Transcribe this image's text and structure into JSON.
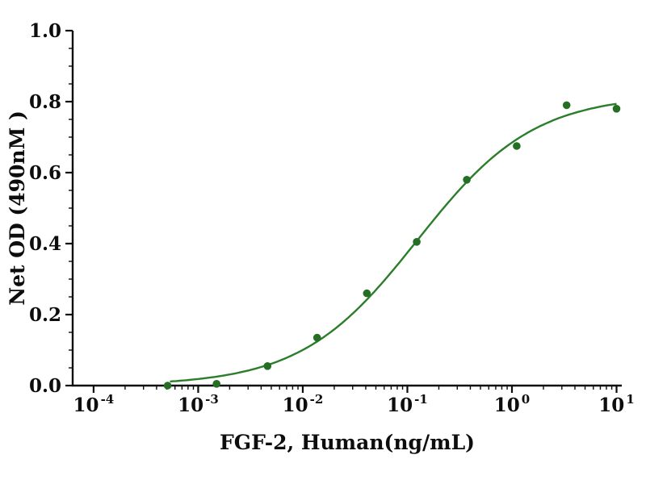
{
  "chart_data": {
    "type": "scatter",
    "title": "",
    "xlabel": "FGF-2, Human(ng/mL)",
    "ylabel": "Net OD (490nM )",
    "x_scale": "log",
    "xlim": [
      0.0001,
      10
    ],
    "ylim": [
      0.0,
      1.0
    ],
    "grid": false,
    "legend": "none",
    "x": [
      0.00051,
      0.0015,
      0.0046,
      0.0137,
      0.041,
      0.123,
      0.37,
      1.11,
      3.33,
      10
    ],
    "y": [
      0.0,
      0.005,
      0.055,
      0.135,
      0.26,
      0.405,
      0.58,
      0.675,
      0.79,
      0.78
    ],
    "y_major_values": [
      0.0,
      0.2,
      0.4,
      0.6,
      0.8,
      1.0
    ],
    "y_major_ticks": [
      "0.0",
      "0.2",
      "0.4",
      "0.6",
      "0.8",
      "1.0"
    ],
    "y_minor_step": 0.05,
    "x_major_exponents": [
      -4,
      -3,
      -2,
      -1,
      0,
      1
    ],
    "x_major_ticks": [
      {
        "base": "10",
        "exp": "-4"
      },
      {
        "base": "10",
        "exp": "-3"
      },
      {
        "base": "10",
        "exp": "-2"
      },
      {
        "base": "10",
        "exp": "-1"
      },
      {
        "base": "10",
        "exp": "0"
      },
      {
        "base": "10",
        "exp": "1"
      }
    ],
    "fit_curve": {
      "model": "4PL",
      "bottom": 0.0,
      "top": 0.82,
      "ec50": 0.125,
      "hill": 0.78
    },
    "colors": {
      "curve": "#2a7e2a",
      "points": "#256f25",
      "axis": "#0d0d0d",
      "background": "#ffffff"
    }
  }
}
